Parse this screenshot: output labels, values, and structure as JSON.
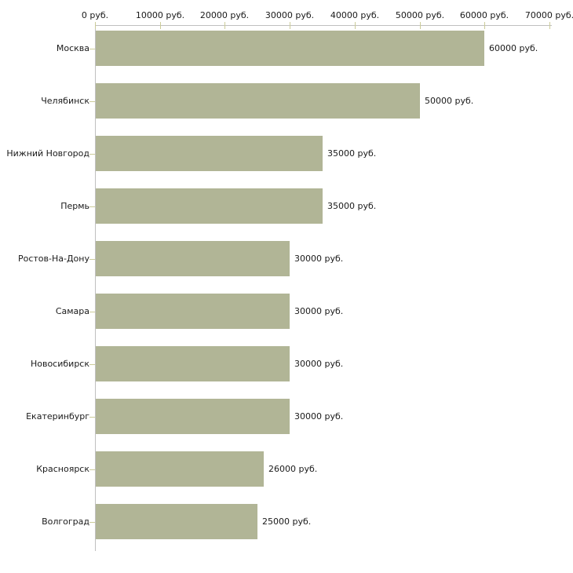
{
  "chart_data": {
    "type": "bar",
    "orientation": "horizontal",
    "categories": [
      "Москва",
      "Челябинск",
      "Нижний Новгород",
      "Пермь",
      "Ростов-На-Дону",
      "Самара",
      "Новосибирск",
      "Екатеринбург",
      "Красноярск",
      "Волгоград"
    ],
    "values": [
      60000,
      50000,
      35000,
      35000,
      30000,
      30000,
      30000,
      30000,
      26000,
      25000
    ],
    "value_labels": [
      "60000 руб.",
      "50000 руб.",
      "35000 руб.",
      "35000 руб.",
      "30000 руб.",
      "30000 руб.",
      "30000 руб.",
      "30000 руб.",
      "26000 руб.",
      "25000 руб."
    ],
    "x_ticks": [
      {
        "value": 0,
        "label": "0 руб."
      },
      {
        "value": 10000,
        "label": "10000 руб."
      },
      {
        "value": 20000,
        "label": "20000 руб."
      },
      {
        "value": 30000,
        "label": "30000 руб."
      },
      {
        "value": 40000,
        "label": "40000 руб."
      },
      {
        "value": 50000,
        "label": "50000 руб."
      },
      {
        "value": 60000,
        "label": "60000 руб."
      },
      {
        "value": 70000,
        "label": "70000 руб."
      }
    ],
    "xlim": [
      0,
      70000
    ],
    "grid": false,
    "legend": null,
    "title": "",
    "colors": {
      "bar": "#b1b596",
      "axis": "#c0c0c0",
      "tick": "#cccc99",
      "text": "#1a1a1a"
    }
  }
}
